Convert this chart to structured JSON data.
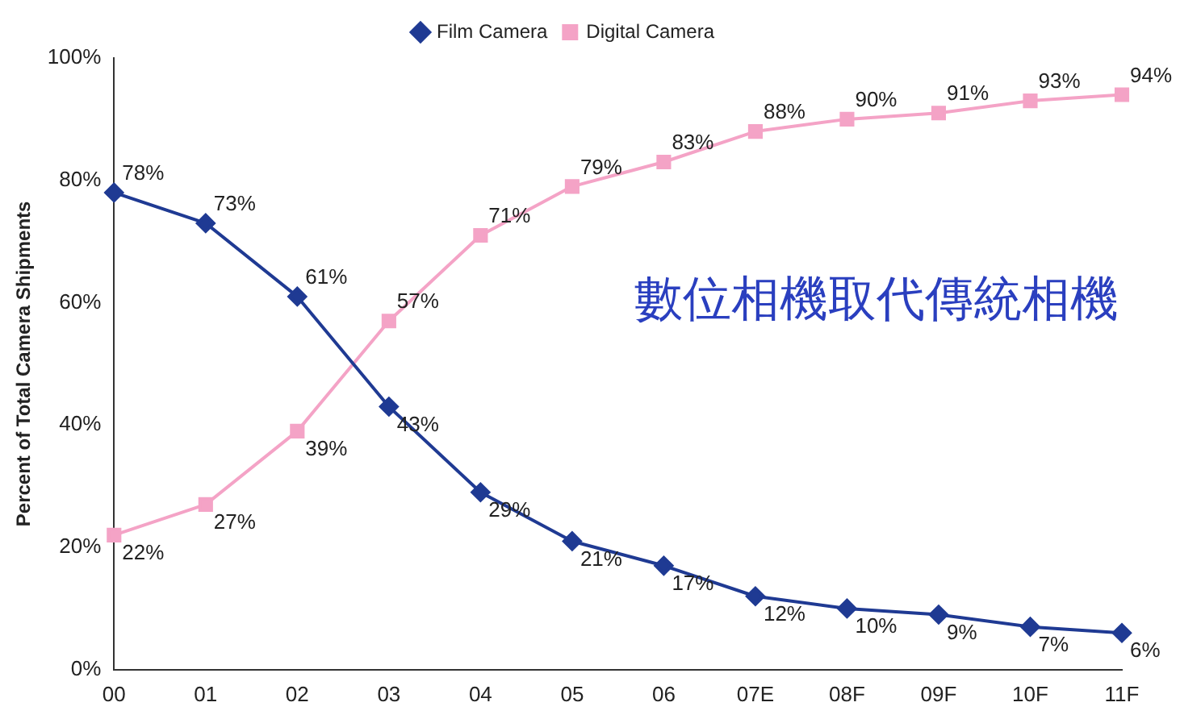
{
  "chart_data": {
    "type": "line",
    "ylabel": "Percent of Total Camera Shipments",
    "categories": [
      "00",
      "01",
      "02",
      "03",
      "04",
      "05",
      "06",
      "07E",
      "08F",
      "09F",
      "10F",
      "11F"
    ],
    "series": [
      {
        "name": "Film Camera",
        "color": "#1f3a93",
        "marker": "diamond",
        "values": [
          78,
          73,
          61,
          43,
          29,
          21,
          17,
          12,
          10,
          9,
          7,
          6
        ],
        "value_labels": [
          "78%",
          "73%",
          "61%",
          "43%",
          "29%",
          "21%",
          "17%",
          "12%",
          "10%",
          "9%",
          "7%",
          "6%"
        ]
      },
      {
        "name": "Digital Camera",
        "color": "#f4a3c6",
        "marker": "square",
        "values": [
          22,
          27,
          39,
          57,
          71,
          79,
          83,
          88,
          90,
          91,
          93,
          94
        ],
        "value_labels": [
          "22%",
          "27%",
          "39%",
          "57%",
          "71%",
          "79%",
          "83%",
          "88%",
          "90%",
          "91%",
          "93%",
          "94%"
        ]
      }
    ],
    "ylim": [
      0,
      100
    ],
    "yticks": [
      {
        "value": 0,
        "label": "0%"
      },
      {
        "value": 20,
        "label": "20%"
      },
      {
        "value": 40,
        "label": "40%"
      },
      {
        "value": 60,
        "label": "60%"
      },
      {
        "value": 80,
        "label": "80%"
      },
      {
        "value": 100,
        "label": "100%"
      }
    ],
    "grid": false,
    "legend": "top",
    "line_style": "solid",
    "annotations": [
      "數位相機取代傳統相機"
    ]
  }
}
